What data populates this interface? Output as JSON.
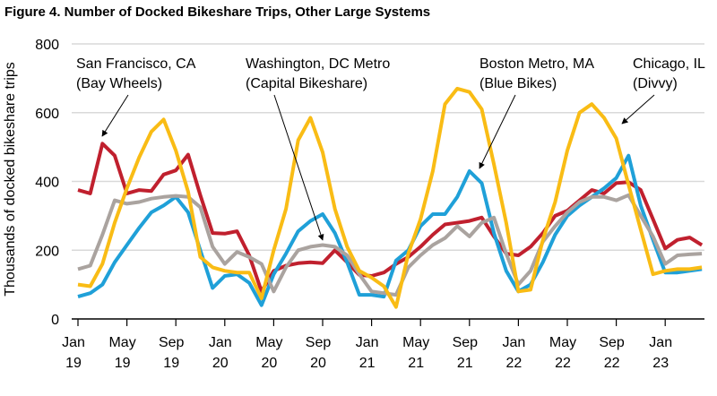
{
  "chart_data": {
    "type": "line",
    "title": "Figure 4. Number of Docked Bikeshare Trips, Other Large Systems",
    "xlabel": "",
    "ylabel": "Thousands of docked bikeshare trips",
    "ylim": [
      0,
      800
    ],
    "yticks": [
      "0",
      "200",
      "400",
      "600",
      "800"
    ],
    "grid": "horizontal",
    "x_ticks": [
      {
        "month": "Jan",
        "year": "19"
      },
      {
        "month": "May",
        "year": "19"
      },
      {
        "month": "Sep",
        "year": "19"
      },
      {
        "month": "Jan",
        "year": "20"
      },
      {
        "month": "May",
        "year": "20"
      },
      {
        "month": "Sep",
        "year": "20"
      },
      {
        "month": "Jan",
        "year": "21"
      },
      {
        "month": "May",
        "year": "21"
      },
      {
        "month": "Sep",
        "year": "21"
      },
      {
        "month": "Jan",
        "year": "22"
      },
      {
        "month": "May",
        "year": "22"
      },
      {
        "month": "Sep",
        "year": "22"
      },
      {
        "month": "Jan",
        "year": "23"
      }
    ],
    "x_range": [
      "Jan 2019",
      "Apr 2023"
    ],
    "series": [
      {
        "name": "San Francisco, CA (Bay Wheels)",
        "label1": "San Francisco, CA",
        "label2": "(Bay Wheels)",
        "color": "#c0202e",
        "values": [
          375,
          365,
          510,
          475,
          365,
          375,
          372,
          420,
          432,
          478,
          360,
          250,
          248,
          255,
          185,
          80,
          140,
          155,
          162,
          165,
          162,
          200,
          165,
          128,
          125,
          135,
          160,
          180,
          210,
          245,
          275,
          280,
          285,
          295,
          240,
          190,
          185,
          210,
          250,
          300,
          315,
          345,
          375,
          365,
          395,
          398,
          375,
          290,
          205,
          230,
          237,
          215
        ]
      },
      {
        "name": "Washington, DC Metro (Capital Bikeshare)",
        "label1": "Washington, DC Metro",
        "label2": "(Capital Bikeshare)",
        "color": "#aaa39f",
        "values": [
          145,
          155,
          245,
          345,
          335,
          340,
          350,
          355,
          358,
          355,
          325,
          210,
          160,
          195,
          180,
          160,
          80,
          150,
          200,
          210,
          215,
          210,
          185,
          130,
          80,
          75,
          70,
          150,
          185,
          215,
          235,
          270,
          240,
          280,
          295,
          190,
          100,
          140,
          225,
          270,
          310,
          340,
          355,
          355,
          345,
          360,
          300,
          240,
          160,
          185,
          188,
          190
        ]
      },
      {
        "name": "Boston Metro, MA (Blue Bikes)",
        "label1": "Boston Metro, MA",
        "label2": "(Blue Bikes)",
        "color": "#1fa0d8",
        "values": [
          65,
          75,
          100,
          165,
          215,
          265,
          310,
          330,
          355,
          310,
          200,
          90,
          125,
          130,
          105,
          40,
          130,
          190,
          255,
          285,
          305,
          250,
          165,
          70,
          70,
          65,
          170,
          200,
          270,
          305,
          305,
          355,
          430,
          395,
          250,
          140,
          80,
          100,
          165,
          245,
          300,
          330,
          355,
          380,
          410,
          475,
          330,
          230,
          135,
          135,
          140,
          145
        ]
      },
      {
        "name": "Chicago, IL (Divvy)",
        "label1": "Chicago, IL",
        "label2": "(Divvy)",
        "color": "#f9bc15",
        "values": [
          100,
          95,
          160,
          280,
          380,
          470,
          545,
          580,
          490,
          370,
          180,
          150,
          140,
          135,
          135,
          60,
          200,
          320,
          520,
          585,
          485,
          320,
          210,
          140,
          120,
          95,
          35,
          190,
          290,
          430,
          625,
          670,
          660,
          610,
          450,
          280,
          80,
          85,
          230,
          340,
          490,
          600,
          625,
          585,
          525,
          390,
          260,
          130,
          140,
          145,
          145,
          150
        ]
      }
    ]
  }
}
